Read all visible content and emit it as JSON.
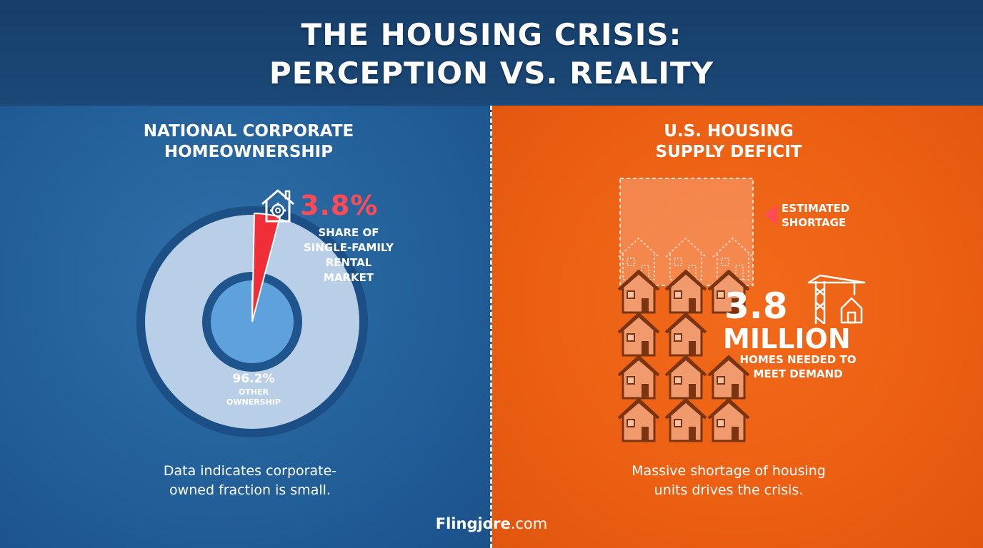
{
  "header": {
    "title_line1": "THE HOUSING CRISIS:",
    "title_line2": "PERCEPTION VS. REALITY"
  },
  "left_panel": {
    "title_line1": "NATIONAL CORPORATE",
    "title_line2": "HOMEOWNERSHIP",
    "corporate_value": "3.8%",
    "corporate_share": 3.8,
    "corporate_label": [
      "SHARE OF",
      "SINGLE-FAMILY",
      "RENTAL",
      "MARKET"
    ],
    "other_value": "96.2%",
    "other_label": [
      "OTHER",
      "OWNERSHIP"
    ],
    "caption_line1": "Data indicates corporate-",
    "caption_line2": "owned fraction is small.",
    "icon": "house-gear-icon"
  },
  "right_panel": {
    "title_line1": "U.S. HOUSING",
    "title_line2": "SUPPLY DEFICIT",
    "shortage_label": [
      "ESTIMATED",
      "SHORTAGE"
    ],
    "big_number": "3.8",
    "big_unit": "MILLION",
    "needed_label": [
      "HOMES NEEDED TO",
      "MEET DEMAND"
    ],
    "caption_line1": "Massive shortage of housing",
    "caption_line2": "units drives the crisis.",
    "icon": "crane-icon"
  },
  "footer": {
    "brand_bold": "Flingjore",
    "brand_suffix": ".com"
  },
  "colors": {
    "blue": "#23609a",
    "orange": "#ec5f12",
    "red": "#ff4b55",
    "header": "#173f6c"
  }
}
